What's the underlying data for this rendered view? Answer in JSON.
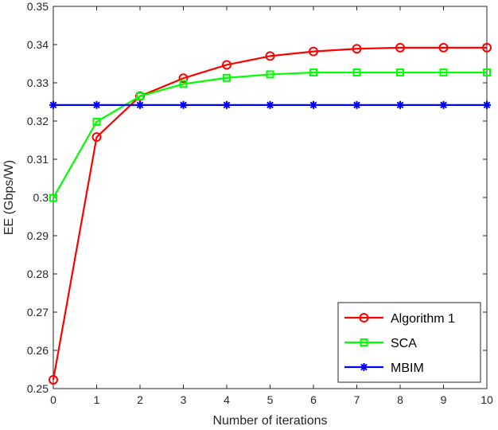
{
  "chart_data": {
    "type": "line",
    "xlabel": "Number of iterations",
    "ylabel": "EE (Gbps/W)",
    "xlim": [
      0,
      10
    ],
    "ylim": [
      0.25,
      0.35
    ],
    "xticks": [
      0,
      1,
      2,
      3,
      4,
      5,
      6,
      7,
      8,
      9,
      10
    ],
    "yticks": [
      0.25,
      0.26,
      0.27,
      0.28,
      0.29,
      0.3,
      0.31,
      0.32,
      0.33,
      0.34,
      0.35
    ],
    "grid": false,
    "legend_position": "bottom-right",
    "x": [
      0,
      1,
      2,
      3,
      4,
      5,
      6,
      7,
      8,
      9,
      10
    ],
    "series": [
      {
        "name": "Algorithm 1",
        "color": "#ff0000",
        "marker": "circle",
        "values": [
          0.2523,
          0.3158,
          0.3265,
          0.3312,
          0.3347,
          0.337,
          0.3382,
          0.3389,
          0.3392,
          0.3392,
          0.3392
        ]
      },
      {
        "name": "SCA",
        "color": "#00ff00",
        "marker": "square",
        "values": [
          0.2999,
          0.3198,
          0.3265,
          0.3297,
          0.3313,
          0.3322,
          0.3327,
          0.3327,
          0.3327,
          0.3327,
          0.3327
        ]
      },
      {
        "name": "MBIM",
        "color": "#0000ff",
        "marker": "asterisk",
        "values": [
          0.3242,
          0.3242,
          0.3242,
          0.3242,
          0.3242,
          0.3242,
          0.3242,
          0.3242,
          0.3242,
          0.3242,
          0.3242
        ]
      }
    ]
  }
}
